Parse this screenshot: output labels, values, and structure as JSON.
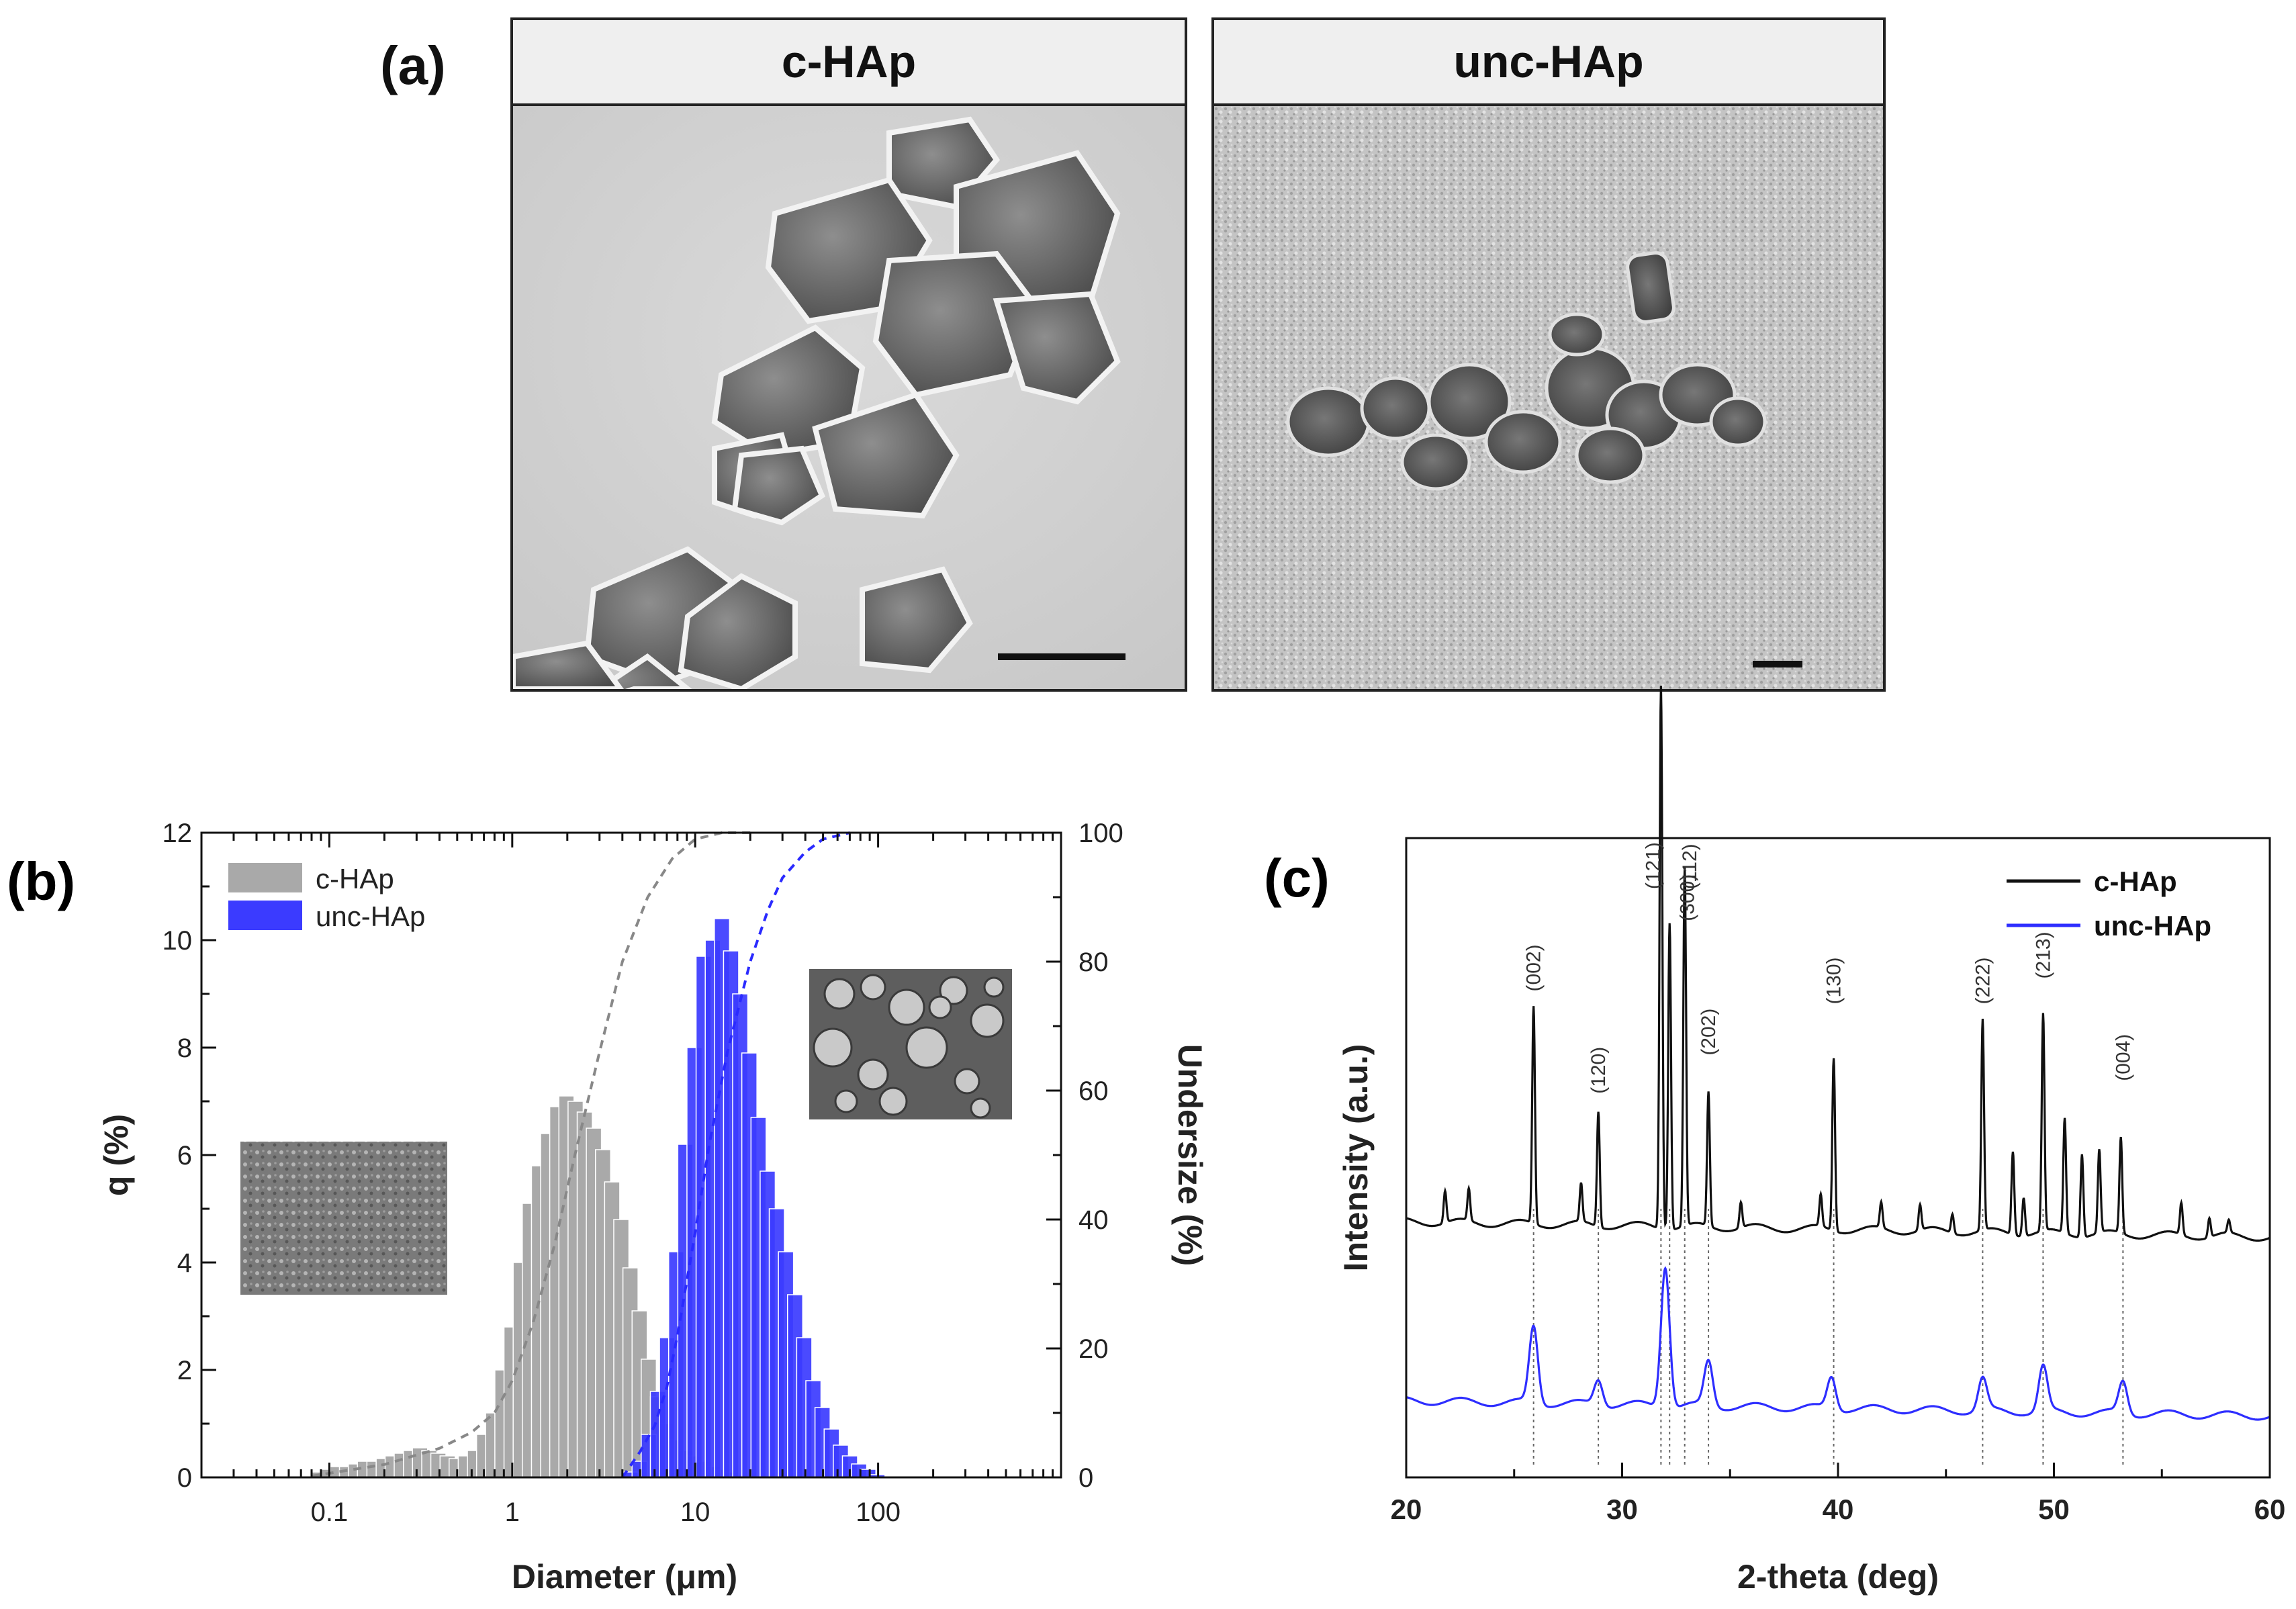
{
  "panel_a": {
    "label": "(a)",
    "images": [
      {
        "title": "c-HAp"
      },
      {
        "title": "unc-HAp"
      }
    ]
  },
  "chart_data": [
    {
      "panel_label": "(b)",
      "type": "bar",
      "x_scale": "log",
      "xlabel": "Diameter (μm)",
      "ylabel": "q (%)",
      "ylabel_right": "Undersize (%)",
      "xlim": [
        0.02,
        1000
      ],
      "ylim": [
        0,
        12
      ],
      "ylim_right": [
        0,
        100
      ],
      "x_ticks": [
        0.1,
        1,
        10,
        100
      ],
      "x_tick_labels": [
        "0.1",
        "1",
        "10",
        "100"
      ],
      "y_ticks": [
        0,
        2,
        4,
        6,
        8,
        10,
        12
      ],
      "y_right_ticks": [
        0,
        20,
        40,
        60,
        80,
        100
      ],
      "legend_position": "top-left",
      "series": [
        {
          "name": "c-HAp",
          "color": "#a9a9a9",
          "x": [
            0.089,
            0.1,
            0.112,
            0.126,
            0.141,
            0.158,
            0.178,
            0.2,
            0.224,
            0.251,
            0.282,
            0.316,
            0.355,
            0.398,
            0.447,
            0.501,
            0.562,
            0.631,
            0.708,
            0.794,
            0.891,
            1.0,
            1.122,
            1.259,
            1.413,
            1.585,
            1.778,
            1.995,
            2.239,
            2.512,
            2.818,
            3.162,
            3.548,
            3.981,
            4.467,
            5.012,
            5.623,
            6.31,
            7.079,
            7.943,
            8.913,
            10.0,
            11.22,
            12.59,
            14.13,
            15.85,
            17.78
          ],
          "values": [
            0.1,
            0.15,
            0.2,
            0.2,
            0.25,
            0.3,
            0.3,
            0.35,
            0.4,
            0.45,
            0.5,
            0.55,
            0.5,
            0.45,
            0.4,
            0.35,
            0.4,
            0.5,
            0.8,
            1.2,
            2.0,
            2.8,
            4.0,
            5.1,
            5.8,
            6.4,
            6.9,
            7.1,
            7.0,
            6.8,
            6.5,
            6.1,
            5.5,
            4.8,
            3.9,
            3.1,
            2.2,
            1.5,
            1.0,
            0.7,
            0.5,
            0.4,
            0.3,
            0.2,
            0.15,
            0.1,
            0.05
          ]
        },
        {
          "name": "unc-HAp",
          "color": "#3b3bff",
          "x": [
            4.467,
            5.012,
            5.623,
            6.31,
            7.079,
            7.943,
            8.913,
            10.0,
            11.22,
            12.59,
            14.13,
            15.85,
            17.78,
            19.95,
            22.39,
            25.12,
            28.18,
            31.62,
            35.48,
            39.81,
            44.67,
            50.12,
            56.23,
            63.1,
            70.79,
            79.43,
            89.13,
            100.0
          ],
          "values": [
            0.1,
            0.3,
            0.8,
            1.6,
            2.6,
            4.2,
            6.2,
            8.0,
            9.7,
            10.0,
            10.4,
            9.8,
            9.0,
            7.9,
            6.7,
            5.7,
            5.0,
            4.2,
            3.4,
            2.6,
            1.8,
            1.3,
            0.9,
            0.6,
            0.4,
            0.25,
            0.15,
            0.05
          ]
        }
      ],
      "cumulative": [
        {
          "name": "c-HAp",
          "color": "#888888",
          "x": [
            0.08,
            0.2,
            0.4,
            0.6,
            0.8,
            1.0,
            1.3,
            1.7,
            2.2,
            3.0,
            4.0,
            5.5,
            7.5,
            10,
            14,
            20
          ],
          "y": [
            0.2,
            2,
            4.5,
            7,
            10,
            15,
            24,
            36,
            50,
            66,
            80,
            90,
            96,
            99,
            100,
            100
          ]
        },
        {
          "name": "unc-HAp",
          "color": "#2a2aff",
          "x": [
            4,
            5,
            6,
            7,
            8,
            10,
            12,
            15,
            20,
            25,
            30,
            40,
            50,
            70
          ],
          "y": [
            0,
            4,
            8,
            14,
            22,
            38,
            52,
            66,
            80,
            88,
            93,
            97,
            99,
            100
          ]
        }
      ]
    },
    {
      "panel_label": "(c)",
      "type": "line",
      "xlabel": "2-theta (deg)",
      "ylabel": "Intensity (a.u.)",
      "xlim": [
        20,
        60
      ],
      "x_ticks": [
        20,
        30,
        40,
        50,
        60
      ],
      "legend_position": "top-right",
      "series": [
        {
          "name": "c-HAp",
          "color": "#111111",
          "baseline": 0.4,
          "peaks": [
            [
              21.8,
              0.05
            ],
            [
              22.9,
              0.05
            ],
            [
              25.9,
              0.34
            ],
            [
              28.1,
              0.06
            ],
            [
              28.9,
              0.18
            ],
            [
              31.8,
              0.85
            ],
            [
              32.2,
              0.48
            ],
            [
              32.9,
              0.56
            ],
            [
              34.0,
              0.21
            ],
            [
              35.5,
              0.04
            ],
            [
              39.2,
              0.05
            ],
            [
              39.8,
              0.27
            ],
            [
              42.0,
              0.04
            ],
            [
              43.8,
              0.04
            ],
            [
              45.3,
              0.03
            ],
            [
              46.7,
              0.33
            ],
            [
              48.1,
              0.13
            ],
            [
              48.6,
              0.06
            ],
            [
              49.5,
              0.34
            ],
            [
              50.5,
              0.18
            ],
            [
              51.3,
              0.13
            ],
            [
              52.1,
              0.13
            ],
            [
              53.1,
              0.15
            ],
            [
              55.9,
              0.05
            ],
            [
              57.2,
              0.03
            ],
            [
              58.1,
              0.02
            ]
          ]
        },
        {
          "name": "unc-HAp",
          "color": "#2e2eff",
          "baseline": 0.12,
          "peaks": [
            [
              25.9,
              0.12
            ],
            [
              28.9,
              0.04
            ],
            [
              32.0,
              0.22
            ],
            [
              34.0,
              0.07
            ],
            [
              39.7,
              0.05
            ],
            [
              46.7,
              0.05
            ],
            [
              49.5,
              0.07
            ],
            [
              53.2,
              0.05
            ]
          ]
        }
      ],
      "peak_labels": [
        {
          "x": 25.9,
          "label": "(002)"
        },
        {
          "x": 28.9,
          "label": "(120)"
        },
        {
          "x": 31.8,
          "label": "(121)"
        },
        {
          "x": 32.2,
          "label": "(112)"
        },
        {
          "x": 32.9,
          "label": "(300)"
        },
        {
          "x": 34.0,
          "label": "(202)"
        },
        {
          "x": 39.8,
          "label": "(130)"
        },
        {
          "x": 46.7,
          "label": "(222)"
        },
        {
          "x": 49.5,
          "label": "(213)"
        },
        {
          "x": 53.2,
          "label": "(004)"
        }
      ]
    }
  ]
}
